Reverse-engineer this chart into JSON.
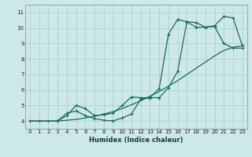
{
  "title": "",
  "xlabel": "Humidex (Indice chaleur)",
  "bg_color": "#cce8e8",
  "grid_color": "#aacccc",
  "line_color": "#1a6b5a",
  "xlim": [
    -0.5,
    23.5
  ],
  "ylim": [
    3.5,
    11.5
  ],
  "xticks": [
    0,
    1,
    2,
    3,
    4,
    5,
    6,
    7,
    8,
    9,
    10,
    11,
    12,
    13,
    14,
    15,
    16,
    17,
    18,
    19,
    20,
    21,
    22,
    23
  ],
  "yticks": [
    4,
    5,
    6,
    7,
    8,
    9,
    10,
    11
  ],
  "series1_x": [
    0,
    1,
    2,
    3,
    4,
    5,
    6,
    7,
    8,
    9,
    10,
    11,
    12,
    13,
    14,
    15,
    16,
    17,
    18,
    19,
    20,
    21,
    22,
    23
  ],
  "series1_y": [
    4.0,
    4.0,
    4.0,
    4.0,
    4.05,
    4.1,
    4.2,
    4.3,
    4.45,
    4.6,
    4.8,
    5.05,
    5.3,
    5.6,
    5.9,
    6.25,
    6.6,
    7.0,
    7.4,
    7.8,
    8.2,
    8.55,
    8.75,
    8.85
  ],
  "series2_x": [
    0,
    1,
    2,
    3,
    4,
    5,
    6,
    7,
    8,
    9,
    10,
    11,
    12,
    13,
    14,
    15,
    16,
    17,
    18,
    19,
    20,
    21,
    22,
    23
  ],
  "series2_y": [
    4.0,
    4.0,
    4.0,
    4.0,
    4.5,
    4.65,
    4.35,
    4.15,
    4.05,
    4.0,
    4.2,
    4.45,
    5.4,
    5.5,
    5.5,
    6.15,
    7.2,
    10.4,
    10.35,
    10.05,
    10.1,
    9.0,
    8.7,
    8.7
  ],
  "series3_x": [
    3,
    4,
    5,
    6,
    7,
    8,
    9,
    10,
    11,
    12,
    13,
    14,
    15,
    16,
    17,
    18,
    19,
    20,
    21,
    22,
    23
  ],
  "series3_y": [
    4.0,
    4.35,
    5.0,
    4.8,
    4.35,
    4.4,
    4.5,
    5.0,
    5.55,
    5.5,
    5.5,
    6.1,
    9.6,
    10.55,
    10.4,
    10.05,
    10.05,
    10.15,
    10.75,
    10.65,
    8.85
  ]
}
